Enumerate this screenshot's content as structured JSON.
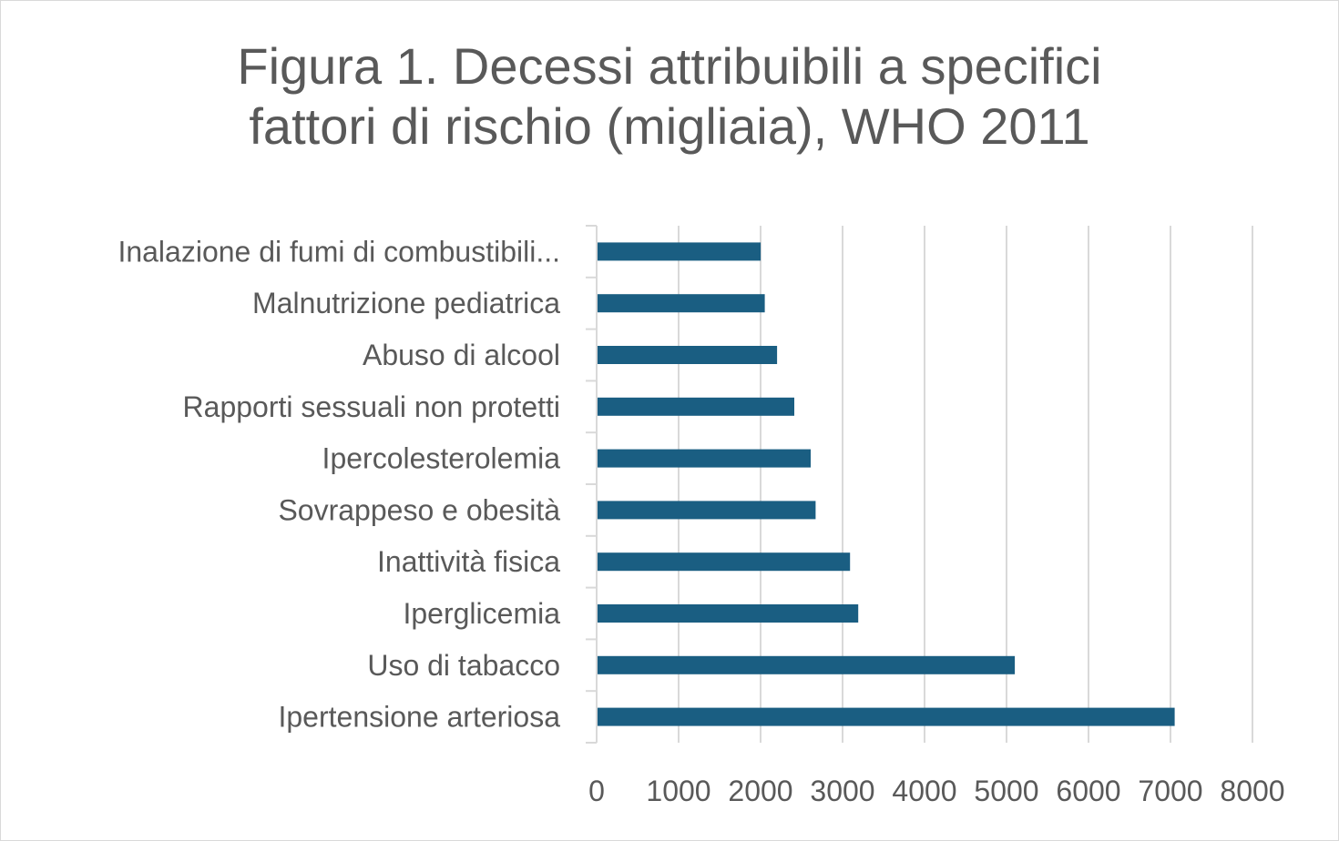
{
  "chart_data": {
    "type": "bar",
    "orientation": "horizontal",
    "title_lines": [
      "Figura 1. Decessi attribuibili a specifici",
      "fattori di rischio (migliaia), WHO 2011"
    ],
    "categories": [
      "Ipertensione arteriosa",
      "Uso di tabacco",
      "Iperglicemia",
      "Inattività fisica",
      "Sovrappeso e obesità",
      "Ipercolesterolemia",
      "Rapporti sessuali non protetti",
      "Abuso di alcool",
      "Malnutrizione pediatrica",
      "Inalazione di fumi di combustibili..."
    ],
    "values": [
      7040,
      5090,
      3180,
      3080,
      2660,
      2600,
      2400,
      2190,
      2040,
      1990
    ],
    "xlim": [
      0,
      8000
    ],
    "xticks": [
      "0",
      "1000",
      "2000",
      "3000",
      "4000",
      "5000",
      "6000",
      "7000",
      "8000"
    ],
    "grid": true,
    "bar_color": "#1a5e82",
    "grid_color": "#d9d9d9",
    "text_color": "#595959"
  }
}
